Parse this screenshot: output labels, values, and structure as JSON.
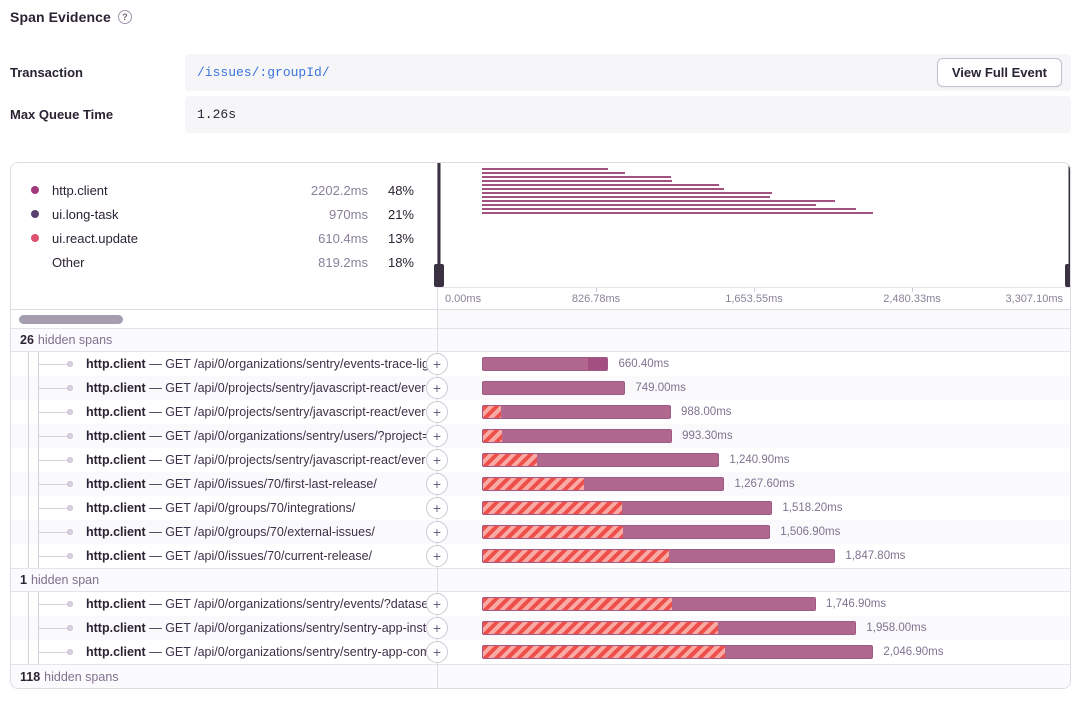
{
  "header": {
    "title": "Span Evidence",
    "help": "?"
  },
  "fields": {
    "transaction": {
      "label": "Transaction",
      "value": "/issues/:groupId/",
      "action": "View Full Event"
    },
    "max_queue_time": {
      "label": "Max Queue Time",
      "value": "1.26s"
    }
  },
  "legend": {
    "items": [
      {
        "name": "http.client",
        "duration": "2202.2ms",
        "percent": "48%",
        "color": "#a23a7b"
      },
      {
        "name": "ui.long-task",
        "duration": "970ms",
        "percent": "21%",
        "color": "#5a4270"
      },
      {
        "name": "ui.react.update",
        "duration": "610.4ms",
        "percent": "13%",
        "color": "#e0506f"
      },
      {
        "name": "Other",
        "duration": "819.2ms",
        "percent": "18%",
        "color": null
      }
    ]
  },
  "minimap": {
    "bar_start_pct": 7,
    "axis": [
      {
        "label": "0.00ms",
        "pct": 0
      },
      {
        "label": "826.78ms",
        "pct": 25
      },
      {
        "label": "1,653.55ms",
        "pct": 50
      },
      {
        "label": "2,480.33ms",
        "pct": 75
      },
      {
        "label": "3,307.10ms",
        "pct": 100
      }
    ]
  },
  "strings": {
    "separator": "—",
    "expand": "+"
  },
  "colors": {
    "bar": "#b1688f",
    "bar_tip": "#a34f7f",
    "hatch_stripe": "#ef4f4b",
    "hatch_gap": "#f8aba4",
    "minimap_bar": "#a3527f",
    "link": "#3c74dd",
    "handle": "#3a3243"
  },
  "groups": [
    {
      "hidden": {
        "count": "26",
        "text": "hidden spans"
      },
      "spans": [
        {
          "op": "http.client",
          "desc": "GET /api/0/organizations/sentry/events-trace-lig",
          "duration": "660.40ms",
          "width_pct": 19.97,
          "hatch_pct": 0,
          "tip_pct": 16
        },
        {
          "op": "http.client",
          "desc": "GET /api/0/projects/sentry/javascript-react/ever",
          "duration": "749.00ms",
          "width_pct": 22.65,
          "hatch_pct": 0,
          "tip_pct": 0
        },
        {
          "op": "http.client",
          "desc": "GET /api/0/projects/sentry/javascript-react/ever",
          "duration": "988.00ms",
          "width_pct": 29.87,
          "hatch_pct": 9.5,
          "tip_pct": 0
        },
        {
          "op": "http.client",
          "desc": "GET /api/0/organizations/sentry/users/?project=",
          "duration": "993.30ms",
          "width_pct": 30.04,
          "hatch_pct": 10,
          "tip_pct": 0
        },
        {
          "op": "http.client",
          "desc": "GET /api/0/projects/sentry/javascript-react/ever",
          "duration": "1,240.90ms",
          "width_pct": 37.52,
          "hatch_pct": 23,
          "tip_pct": 0
        },
        {
          "op": "http.client",
          "desc": "GET /api/0/issues/70/first-last-release/",
          "duration": "1,267.60ms",
          "width_pct": 38.33,
          "hatch_pct": 42,
          "tip_pct": 0
        },
        {
          "op": "http.client",
          "desc": "GET /api/0/groups/70/integrations/",
          "duration": "1,518.20ms",
          "width_pct": 45.91,
          "hatch_pct": 48,
          "tip_pct": 0
        },
        {
          "op": "http.client",
          "desc": "GET /api/0/groups/70/external-issues/",
          "duration": "1,506.90ms",
          "width_pct": 45.57,
          "hatch_pct": 49,
          "tip_pct": 0
        },
        {
          "op": "http.client",
          "desc": "GET /api/0/issues/70/current-release/",
          "duration": "1,847.80ms",
          "width_pct": 55.87,
          "hatch_pct": 53,
          "tip_pct": 0
        }
      ]
    },
    {
      "hidden": {
        "count": "1",
        "text": "hidden span"
      },
      "spans": [
        {
          "op": "http.client",
          "desc": "GET /api/0/organizations/sentry/events/?dataset",
          "duration": "1,746.90ms",
          "width_pct": 52.82,
          "hatch_pct": 57,
          "tip_pct": 0
        },
        {
          "op": "http.client",
          "desc": "GET /api/0/organizations/sentry/sentry-app-inst",
          "duration": "1,958.00ms",
          "width_pct": 59.2,
          "hatch_pct": 63,
          "tip_pct": 0
        },
        {
          "op": "http.client",
          "desc": "GET /api/0/organizations/sentry/sentry-app-com",
          "duration": "2,046.90ms",
          "width_pct": 61.89,
          "hatch_pct": 62,
          "tip_pct": 0
        }
      ]
    },
    {
      "hidden": {
        "count": "118",
        "text": "hidden spans"
      },
      "spans": []
    }
  ]
}
